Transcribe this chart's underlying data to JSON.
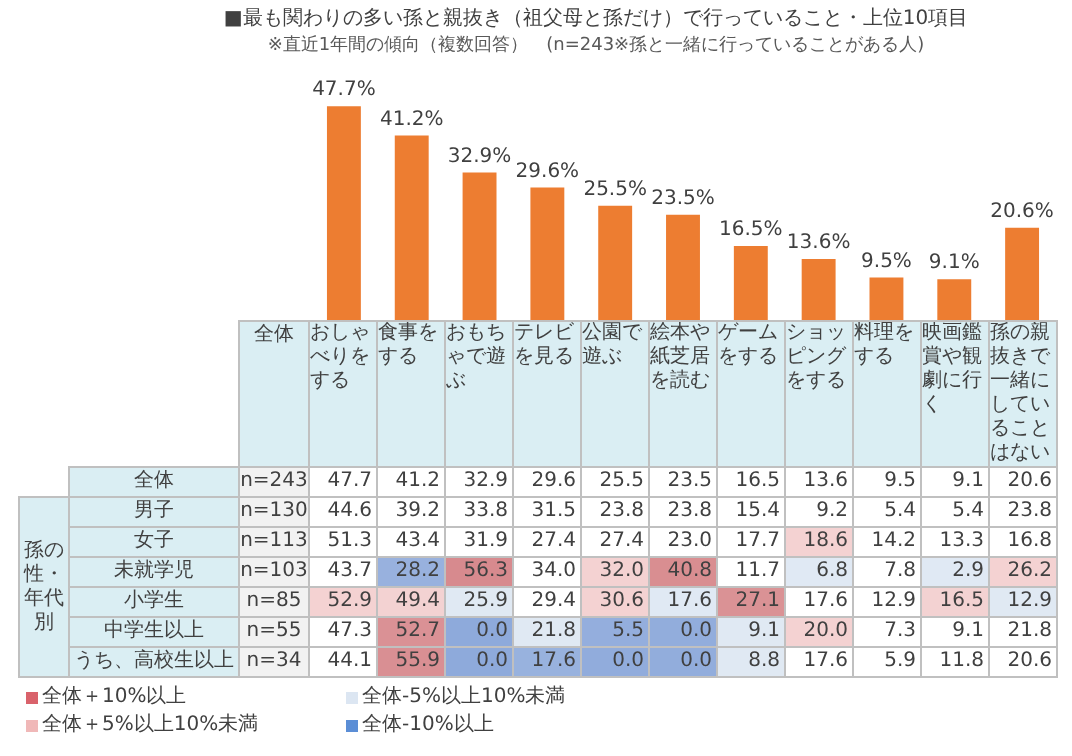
{
  "chart_data": [
    {
      "type": "bar",
      "title": "■最も関わりの多い孫と親抜き（祖父母と孫だけ）で行っていること・上位10項目",
      "subtitle": "※直近1年間の傾向（複数回答）　(n=243※孫と一緒に行っていることがある人)",
      "categories": [
        null,
        null,
        null,
        null,
        null,
        null,
        null,
        null,
        null,
        null,
        null
      ],
      "values": [
        47.7,
        41.2,
        32.9,
        29.6,
        25.5,
        23.5,
        16.5,
        13.6,
        9.5,
        9.1,
        20.6
      ],
      "value_labels": [
        "47.7%",
        "41.2%",
        "32.9%",
        "29.6%",
        "25.5%",
        "23.5%",
        "16.5%",
        "13.6%",
        "9.5%",
        "9.1%",
        "20.6%"
      ],
      "color": "#ed7d31",
      "tick_labels": false,
      "legend": false
    },
    {
      "type": "heatmap",
      "ylabel": "孫の性・年代別",
      "y2label": "全体",
      "categories": [
        "おしゃべりをする",
        "食事をする",
        "おもちゃで遊ぶ",
        "テレビを見る",
        "公園で遊ぶ",
        "絵本や紙芝居を読む",
        "ゲームをする",
        "ショッピングをする",
        "料理をする",
        "映画鑑賞や観劇に行く",
        "孫の親抜きで一緒にしていることはない"
      ],
      "y_categories": [
        "全体",
        "男子",
        "女子",
        "未就学児",
        "小学生",
        "中学生以上",
        "うち、高校生以上"
      ],
      "y2_categories": [
        "n=243",
        "n=130",
        "n=113",
        "n=103",
        "n=85",
        "n=55",
        "n=34"
      ],
      "cells": [
        [
          47.7,
          41.2,
          32.9,
          29.6,
          25.5,
          23.5,
          16.5,
          13.6,
          9.5,
          9.1,
          20.6
        ],
        [
          44.6,
          39.2,
          33.8,
          31.5,
          23.8,
          23.8,
          15.4,
          9.2,
          5.4,
          5.4,
          23.8
        ],
        [
          51.3,
          43.4,
          31.9,
          27.4,
          27.4,
          23.0,
          17.7,
          18.6,
          14.2,
          13.3,
          16.8
        ],
        [
          43.7,
          28.2,
          56.3,
          34.0,
          32.0,
          40.8,
          11.7,
          6.8,
          7.8,
          2.9,
          26.2
        ],
        [
          52.9,
          49.4,
          25.9,
          29.4,
          30.6,
          17.6,
          27.1,
          17.6,
          12.9,
          16.5,
          12.9
        ],
        [
          47.3,
          52.7,
          0.0,
          21.8,
          5.5,
          0.0,
          9.1,
          20.0,
          7.3,
          9.1,
          21.8
        ],
        [
          44.1,
          55.9,
          0.0,
          17.6,
          0.0,
          0.0,
          8.8,
          17.6,
          5.9,
          11.8,
          20.6
        ]
      ],
      "cell_labels": [
        [
          "47.7",
          "41.2",
          "32.9",
          "29.6",
          "25.5",
          "23.5",
          "16.5",
          "13.6",
          "9.5",
          "9.1",
          "20.6"
        ],
        [
          "44.6",
          "39.2",
          "33.8",
          "31.5",
          "23.8",
          "23.8",
          "15.4",
          "9.2",
          "5.4",
          "5.4",
          "23.8"
        ],
        [
          "51.3",
          "43.4",
          "31.9",
          "27.4",
          "27.4",
          "23.0",
          "17.7",
          "18.6",
          "14.2",
          "13.3",
          "16.8"
        ],
        [
          "43.7",
          "28.2",
          "56.3",
          "34.0",
          "32.0",
          "40.8",
          "11.7",
          "6.8",
          "7.8",
          "2.9",
          "26.2"
        ],
        [
          "52.9",
          "49.4",
          "25.9",
          "29.4",
          "30.6",
          "17.6",
          "27.1",
          "17.6",
          "12.9",
          "16.5",
          "12.9"
        ],
        [
          "47.3",
          "52.7",
          "0.0",
          "21.8",
          "5.5",
          "0.0",
          "9.1",
          "20.0",
          "7.3",
          "9.1",
          "21.8"
        ],
        [
          "44.1",
          "55.9",
          "0.0",
          "17.6",
          "0.0",
          "0.0",
          "8.8",
          "17.6",
          "5.9",
          "11.8",
          "20.6"
        ]
      ],
      "annotations": [
        "全体＋10%以上",
        "全体-5%以上10%未満",
        "全体＋5%以上10%未満",
        "全体-10%以上"
      ]
    }
  ]
}
